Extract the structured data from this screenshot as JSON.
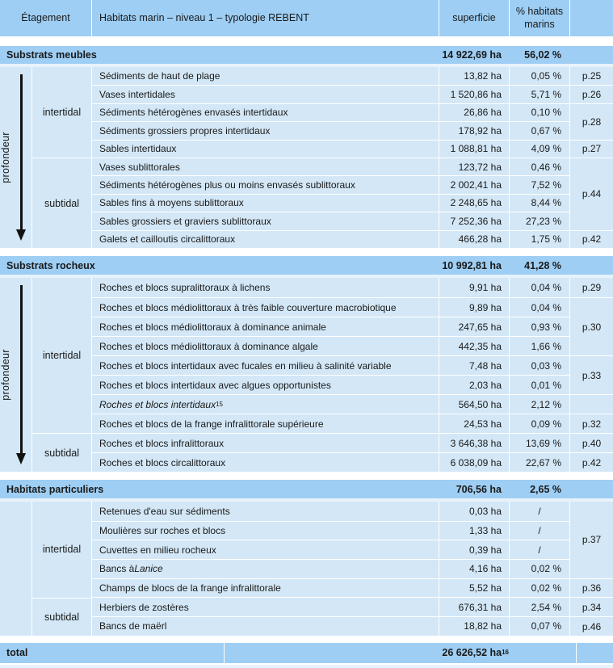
{
  "colors": {
    "band_blue": "#9ecef4",
    "row_blue": "#d3e7f6",
    "gap_blue": "#e7f2fb",
    "text": "#1a1a1a"
  },
  "header": {
    "etagement": "Étagement",
    "habitats": "Habitats marin – niveau 1 – typologie REBENT",
    "superficie": "superficie",
    "pct": "% habitats marins"
  },
  "depth_label": "profondeur",
  "sections": [
    {
      "title": "Substrats meubles",
      "superficie": "14 922,69 ha",
      "pct": "56,02 %",
      "arrow": true,
      "tiers": [
        {
          "label": "intertidal",
          "span": 5
        },
        {
          "label": "subtidal",
          "span": 5
        }
      ],
      "rows": [
        {
          "name": "Sédiments de haut de plage",
          "superficie": "13,82 ha",
          "pct": "0,05 %"
        },
        {
          "name": "Vases intertidales",
          "superficie": "1 520,86 ha",
          "pct": "5,71 %"
        },
        {
          "name": "Sédiments hétérogènes envasés intertidaux",
          "superficie": "26,86 ha",
          "pct": "0,10 %"
        },
        {
          "name": "Sédiments grossiers propres intertidaux",
          "superficie": "178,92 ha",
          "pct": "0,67 %"
        },
        {
          "name": "Sables intertidaux",
          "superficie": "1 088,81 ha",
          "pct": "4,09 %"
        },
        {
          "name": "Vases sublittorales",
          "superficie": "123,72 ha",
          "pct": "0,46 %"
        },
        {
          "name": "Sédiments hétérogènes plus ou moins envasés sublittoraux",
          "superficie": "2 002,41 ha",
          "pct": "7,52 %"
        },
        {
          "name": "Sables fins à moyens sublittoraux",
          "superficie": "2 248,65 ha",
          "pct": "8,44 %"
        },
        {
          "name": "Sables grossiers et graviers sublittoraux",
          "superficie": "7 252,36 ha",
          "pct": "27,23 %"
        },
        {
          "name": "Galets et cailloutis circalittoraux",
          "superficie": "466,28 ha",
          "pct": "1,75 %"
        }
      ],
      "pages": [
        {
          "label": "p.25",
          "span": 1
        },
        {
          "label": "p.26",
          "span": 1
        },
        {
          "label": "p.28",
          "span": 2
        },
        {
          "label": "p.27",
          "span": 1
        },
        {
          "label": "p.44",
          "span": 4
        },
        {
          "label": "p.42",
          "span": 1
        }
      ]
    },
    {
      "title": "Substrats rocheux",
      "superficie": "10 992,81 ha",
      "pct": "41,28 %",
      "arrow": true,
      "tiers": [
        {
          "label": "intertidal",
          "span": 8
        },
        {
          "label": "subtidal",
          "span": 2
        }
      ],
      "rows": [
        {
          "name": "Roches et blocs supralittoraux à lichens",
          "superficie": "9,91 ha",
          "pct": "0,04 %"
        },
        {
          "name": "Roches et blocs médiolittoraux à très faible couverture macrobiotique",
          "superficie": "9,89 ha",
          "pct": "0,04 %"
        },
        {
          "name": "Roches et blocs médiolittoraux à dominance animale",
          "superficie": "247,65 ha",
          "pct": "0,93 %"
        },
        {
          "name": "Roches et blocs médiolittoraux à dominance algale",
          "superficie": "442,35 ha",
          "pct": "1,66 %"
        },
        {
          "name": "Roches et blocs intertidaux avec fucales en milieu à salinité variable",
          "superficie": "7,48 ha",
          "pct": "0,03 %"
        },
        {
          "name": "Roches et blocs intertidaux avec algues opportunistes",
          "superficie": "2,03 ha",
          "pct": "0,01 %"
        },
        {
          "name": "",
          "em": "Roches et blocs intertidaux",
          "sup": "15",
          "superficie": "564,50 ha",
          "pct": "2,12 %"
        },
        {
          "name": "Roches et blocs de la frange infralittorale supérieure",
          "superficie": "24,53 ha",
          "pct": "0,09 %"
        },
        {
          "name": "Roches et blocs infralittoraux",
          "superficie": "3 646,38 ha",
          "pct": "13,69 %"
        },
        {
          "name": "Roches et blocs circalittoraux",
          "superficie": "6 038,09 ha",
          "pct": "22,67 %"
        }
      ],
      "pages": [
        {
          "label": "p.29",
          "span": 1
        },
        {
          "label": "p.30",
          "span": 3
        },
        {
          "label": "p.33",
          "span": 2
        },
        {
          "label": "",
          "span": 1
        },
        {
          "label": "p.32",
          "span": 1
        },
        {
          "label": "p.40",
          "span": 1
        },
        {
          "label": "p.42",
          "span": 1
        }
      ]
    },
    {
      "title": "Habitats particuliers",
      "superficie": "706,56 ha",
      "pct": "2,65 %",
      "arrow": false,
      "tiers": [
        {
          "label": "intertidal",
          "span": 5
        },
        {
          "label": "subtidal",
          "span": 2
        }
      ],
      "rows": [
        {
          "name": "Retenues d'eau sur sédiments",
          "superficie": "0,03 ha",
          "pct": "/"
        },
        {
          "name": "Moulières sur roches et blocs",
          "superficie": "1,33 ha",
          "pct": "/"
        },
        {
          "name": "Cuvettes en milieu rocheux",
          "superficie": "0,39 ha",
          "pct": "/"
        },
        {
          "name": "Bancs à ",
          "em": "Lanice",
          "superficie": "4,16 ha",
          "pct": "0,02 %"
        },
        {
          "name": "Champs de blocs de la frange infralittorale",
          "superficie": "5,52 ha",
          "pct": "0,02 %"
        },
        {
          "name": "Herbiers de zostères",
          "superficie": "676,31 ha",
          "pct": "2,54 %"
        },
        {
          "name": "Bancs de maërl",
          "superficie": "18,82 ha",
          "pct": "0,07 %"
        }
      ],
      "pages": [
        {
          "label": "p.37",
          "span": 4
        },
        {
          "label": "p.36",
          "span": 1
        },
        {
          "label": "p.34",
          "span": 1
        },
        {
          "label": "p.46",
          "span": 1
        }
      ]
    }
  ],
  "total": {
    "label": "total",
    "value": "26 626,52 ha",
    "sup": "16"
  }
}
